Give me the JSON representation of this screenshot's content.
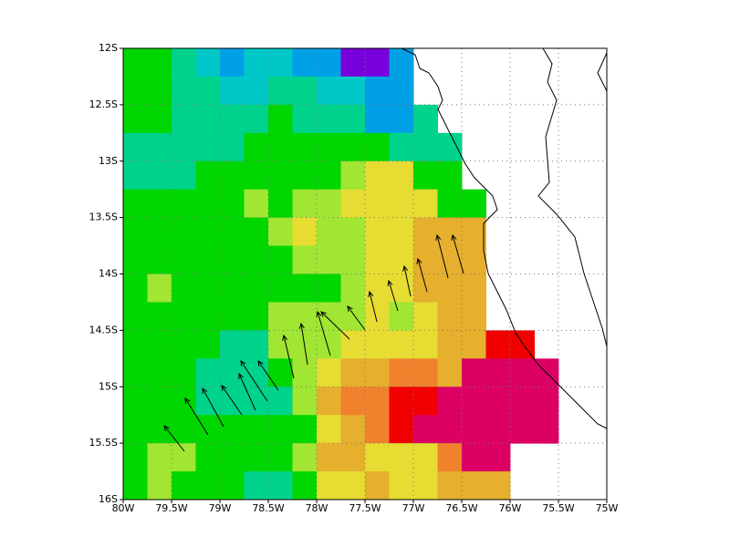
{
  "map": {
    "x_labels": [
      "80W",
      "79.5W",
      "79W",
      "78.5W",
      "78W",
      "77.5W",
      "77W",
      "76.5W",
      "76W",
      "75.5W",
      "75W"
    ],
    "y_labels": [
      "12S",
      "12.5S",
      "13S",
      "13.5S",
      "14S",
      "14.5S",
      "15S",
      "15.5S",
      "16S"
    ]
  }
}
